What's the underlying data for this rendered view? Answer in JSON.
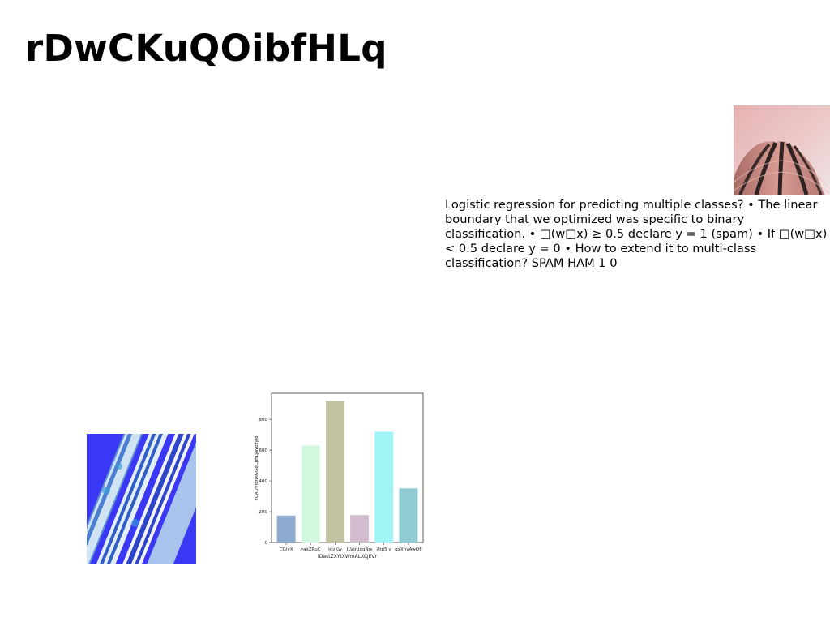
{
  "slide": {
    "title": "rDwCKuQOibfHLq",
    "body_text": "Logistic regression for predicting multiple classes? • The linear boundary that we optimized was specific to binary classification. • □(w□x) ≥ 0.5 declare y = 1 (spam) • If □(w□x) < 0.5 declare y = 0 • How to extend it to multi-class classification? SPAM HAM 1 0"
  },
  "images": {
    "building": "building-photo",
    "paper": "blue-wrapping-paper-photo"
  },
  "chart_data": {
    "type": "bar",
    "categories": [
      "CGjyX",
      "yaxZRuC",
      "ldyKw",
      "JLVgUqqNw",
      "Atp5 y",
      "qxXhvAwQE"
    ],
    "values": [
      175,
      630,
      920,
      178,
      720,
      352
    ],
    "colors": [
      "#8eaacf",
      "#d3f7df",
      "#c2c1a2",
      "#d2bcd0",
      "#a0f4f5",
      "#90ccd4"
    ],
    "xlabel": "lDastZXYtXWmALXCjEVr",
    "ylabel": "rOAUVfotMGGBCJfhLyWbzylo",
    "yticks": [
      0,
      200,
      400,
      600,
      800
    ],
    "ylim": [
      0,
      970
    ],
    "grid": false,
    "legend": "none"
  }
}
